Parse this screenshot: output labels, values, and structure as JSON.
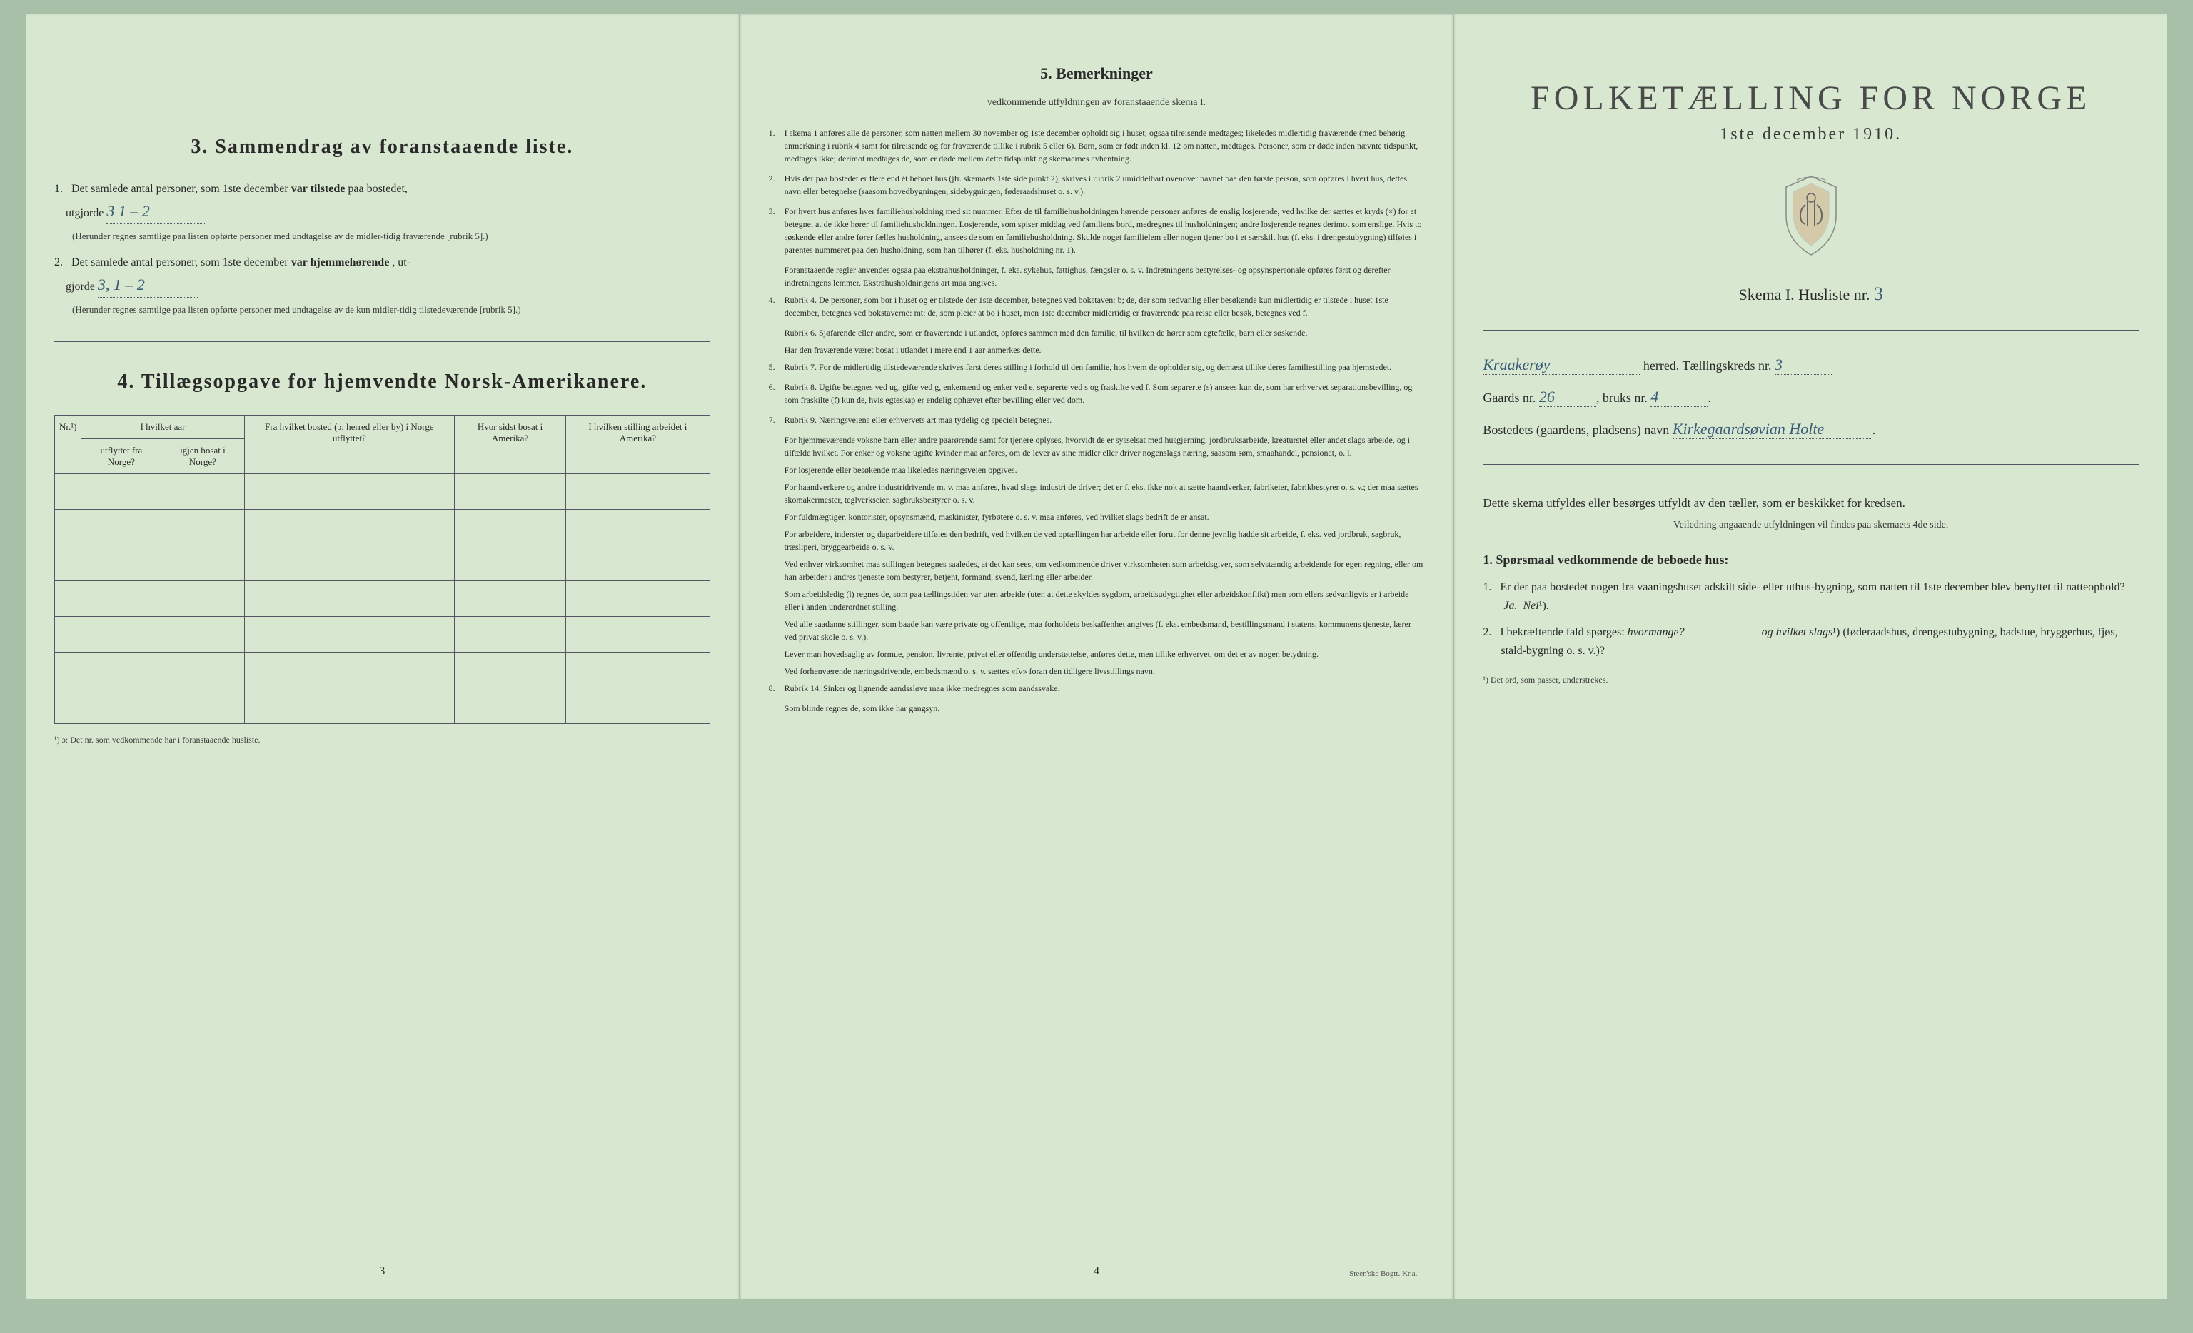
{
  "page1": {
    "section3": {
      "title": "3.   Sammendrag av foranstaaende liste.",
      "item1": {
        "text_a": "Det samlede antal personer, som 1ste december ",
        "text_b": "var tilstede",
        "text_c": " paa bostedet,",
        "text_d": "utgjorde",
        "hw": "3   1 – 2",
        "note": "(Herunder regnes samtlige paa listen opførte personer med undtagelse av de midler-tidig fraværende [rubrik 5].)"
      },
      "item2": {
        "text_a": "Det samlede antal personer, som 1ste december ",
        "text_b": "var hjemmehørende",
        "text_c": ", ut-",
        "text_d": "gjorde",
        "hw": "3,   1 – 2",
        "note": "(Herunder regnes samtlige paa listen opførte personer med undtagelse av de kun midler-tidig tilstedeværende [rubrik 5].)"
      }
    },
    "section4": {
      "title": "4.   Tillægsopgave for hjemvendte Norsk-Amerikanere.",
      "headers": {
        "nr": "Nr.¹)",
        "group1": "I hvilket aar",
        "utflyttet": "utflyttet fra Norge?",
        "igjen": "igjen bosat i Norge?",
        "fra": "Fra hvilket bosted (ɔ: herred eller by) i Norge utflyttet?",
        "hvor": "Hvor sidst bosat i Amerika?",
        "stilling": "I hvilken stilling arbeidet i Amerika?"
      },
      "note": "¹) ɔ: Det nr. som vedkommende har i foranstaaende husliste."
    },
    "page_num": "3"
  },
  "page2": {
    "title": "5.   Bemerkninger",
    "subtitle": "vedkommende utfyldningen av foranstaaende skema I.",
    "items": [
      {
        "n": "1.",
        "t": "I skema 1 anføres alle de personer, som natten mellem 30 november og 1ste december opholdt sig i huset; ogsaa tilreisende medtages; likeledes midlertidig fraværende (med behørig anmerkning i rubrik 4 samt for tilreisende og for fraværende tillike i rubrik 5 eller 6). Barn, som er født inden kl. 12 om natten, medtages. Personer, som er døde inden nævnte tidspunkt, medtages ikke; derimot medtages de, som er døde mellem dette tidspunkt og skemaernes avhentning."
      },
      {
        "n": "2.",
        "t": "Hvis der paa bostedet er flere end ét beboet hus (jfr. skemaets 1ste side punkt 2), skrives i rubrik 2 umiddelbart ovenover navnet paa den første person, som opføres i hvert hus, dettes navn eller betegnelse (saasom hovedbygningen, sidebygningen, føderaadshuset o. s. v.)."
      },
      {
        "n": "3.",
        "t": "For hvert hus anføres hver familiehusholdning med sit nummer. Efter de til familiehusholdningen hørende personer anføres de enslig losjerende, ved hvilke der sættes et kryds (×) for at betegne, at de ikke hører til familiehusholdningen. Losjerende, som spiser middag ved familiens bord, medregnes til husholdningen; andre losjerende regnes derimot som enslige. Hvis to søskende eller andre fører fælles husholdning, ansees de som en familiehusholdning. Skulde noget familielem eller nogen tjener bo i et særskilt hus (f. eks. i drengestubygning) tilføies i parentes nummeret paa den husholdning, som han tilhører (f. eks. husholdning nr. 1)."
      },
      {
        "n": "",
        "t": "Foranstaaende regler anvendes ogsaa paa ekstrahusholdninger, f. eks. sykehus, fattighus, fængsler o. s. v. Indretningens bestyrelses- og opsynspersonale opføres først og derefter indretningens lemmer. Ekstrahusholdningens art maa angives."
      },
      {
        "n": "4.",
        "t": "Rubrik 4. De personer, som bor i huset og er tilstede der 1ste december, betegnes ved bokstaven: b; de, der som sedvanlig eller besøkende kun midlertidig er tilstede i huset 1ste december, betegnes ved bokstaverne: mt; de, som pleier at bo i huset, men 1ste december midlertidig er fraværende paa reise eller besøk, betegnes ved f."
      },
      {
        "n": "",
        "t": "Rubrik 6. Sjøfarende eller andre, som er fraværende i utlandet, opføres sammen med den familie, til hvilken de hører som egtefælle, barn eller søskende."
      },
      {
        "n": "",
        "t": "Har den fraværende været bosat i utlandet i mere end 1 aar anmerkes dette."
      },
      {
        "n": "5.",
        "t": "Rubrik 7. For de midlertidig tilstedeværende skrives først deres stilling i forhold til den familie, hos hvem de opholder sig, og dernæst tillike deres familiestilling paa hjemstedet."
      },
      {
        "n": "6.",
        "t": "Rubrik 8. Ugifte betegnes ved ug, gifte ved g, enkemænd og enker ved e, separerte ved s og fraskilte ved f. Som separerte (s) ansees kun de, som har erhvervet separationsbevilling, og som fraskilte (f) kun de, hvis egteskap er endelig ophævet efter bevilling eller ved dom."
      },
      {
        "n": "7.",
        "t": "Rubrik 9. Næringsveiens eller erhvervets art maa tydelig og specielt betegnes."
      },
      {
        "n": "",
        "t": "For hjemmeværende voksne barn eller andre paarørende samt for tjenere oplyses, hvorvidt de er sysselsat med husgjerning, jordbruksarbeide, kreaturstel eller andet slags arbeide, og i tilfælde hvilket. For enker og voksne ugifte kvinder maa anføres, om de lever av sine midler eller driver nogenslags næring, saasom søm, smaahandel, pensionat, o. l."
      },
      {
        "n": "",
        "t": "For losjerende eller besøkende maa likeledes næringsveien opgives."
      },
      {
        "n": "",
        "t": "For haandverkere og andre industridrivende m. v. maa anføres, hvad slags industri de driver; det er f. eks. ikke nok at sætte haandverker, fabrikeier, fabrikbestyrer o. s. v.; der maa sættes skomakermester, teglverkseier, sagbruksbestyrer o. s. v."
      },
      {
        "n": "",
        "t": "For fuldmægtiger, kontorister, opsynsmænd, maskinister, fyrbøtere o. s. v. maa anføres, ved hvilket slags bedrift de er ansat."
      },
      {
        "n": "",
        "t": "For arbeidere, inderster og dagarbeidere tilføies den bedrift, ved hvilken de ved optællingen har arbeide eller forut for denne jevnlig hadde sit arbeide, f. eks. ved jordbruk, sagbruk, træsliperi, bryggearbeide o. s. v."
      },
      {
        "n": "",
        "t": "Ved enhver virksomhet maa stillingen betegnes saaledes, at det kan sees, om vedkommende driver virksomheten som arbeidsgiver, som selvstændig arbeidende for egen regning, eller om han arbeider i andres tjeneste som bestyrer, betjent, formand, svend, lærling eller arbeider."
      },
      {
        "n": "",
        "t": "Som arbeidsledig (l) regnes de, som paa tællingstiden var uten arbeide (uten at dette skyldes sygdom, arbeidsudygtighet eller arbeidskonflikt) men som ellers sedvanligvis er i arbeide eller i anden underordnet stilling."
      },
      {
        "n": "",
        "t": "Ved alle saadanne stillinger, som baade kan være private og offentlige, maa forholdets beskaffenhet angives (f. eks. embedsmand, bestillingsmand i statens, kommunens tjeneste, lærer ved privat skole o. s. v.)."
      },
      {
        "n": "",
        "t": "Lever man hovedsaglig av formue, pension, livrente, privat eller offentlig understøttelse, anføres dette, men tillike erhvervet, om det er av nogen betydning."
      },
      {
        "n": "",
        "t": "Ved forhenværende næringsdrivende, embedsmænd o. s. v. sættes «fv» foran den tidligere livsstillings navn."
      },
      {
        "n": "8.",
        "t": "Rubrik 14. Sinker og lignende aandssløve maa ikke medregnes som aandssvake."
      },
      {
        "n": "",
        "t": "Som blinde regnes de, som ikke har gangsyn."
      }
    ],
    "page_num": "4",
    "printer": "Steen'ske Bogtr. Kr.a."
  },
  "page3": {
    "title": "FOLKETÆLLING FOR NORGE",
    "date": "1ste december 1910.",
    "skema": "Skema I.   Husliste nr.",
    "skema_hw": "3",
    "herred_hw": "Kraakerøy",
    "herred_label": "herred.   Tællingskreds nr.",
    "kreds_hw": "3",
    "gaard_label": "Gaards nr.",
    "gaard_hw": "26",
    "bruks_label": "bruks nr.",
    "bruks_hw": "4",
    "bosted_label": "Bostedets (gaardens, pladsens) navn",
    "bosted_hw": "Kirkegaardsøvian Holte",
    "instruct": "Dette skema utfyldes eller besørges utfyldt av den tæller, som er beskikket for kredsen.",
    "instruct_sub": "Veiledning angaaende utfyldningen vil findes paa skemaets 4de side.",
    "q_header": "Spørsmaal vedkommende de beboede hus:",
    "q1": {
      "text": "Er der paa bostedet nogen fra vaaningshuset adskilt side- eller uthus-bygning, som natten til 1ste december blev benyttet til natteophold?",
      "answer_a": "Ja.",
      "answer_b": "Nei",
      "sup": "¹)."
    },
    "q2": {
      "text_a": "I bekræftende fald spørges: ",
      "text_b": "hvormange?",
      "text_c": "og hvilket slags",
      "text_d": " (føderaadshus, drengestubygning, badstue, bryggerhus, fjøs, stald-bygning o. s. v.)?",
      "sup": "¹)"
    },
    "footnote": "¹) Det ord, som passer, understrekes."
  }
}
